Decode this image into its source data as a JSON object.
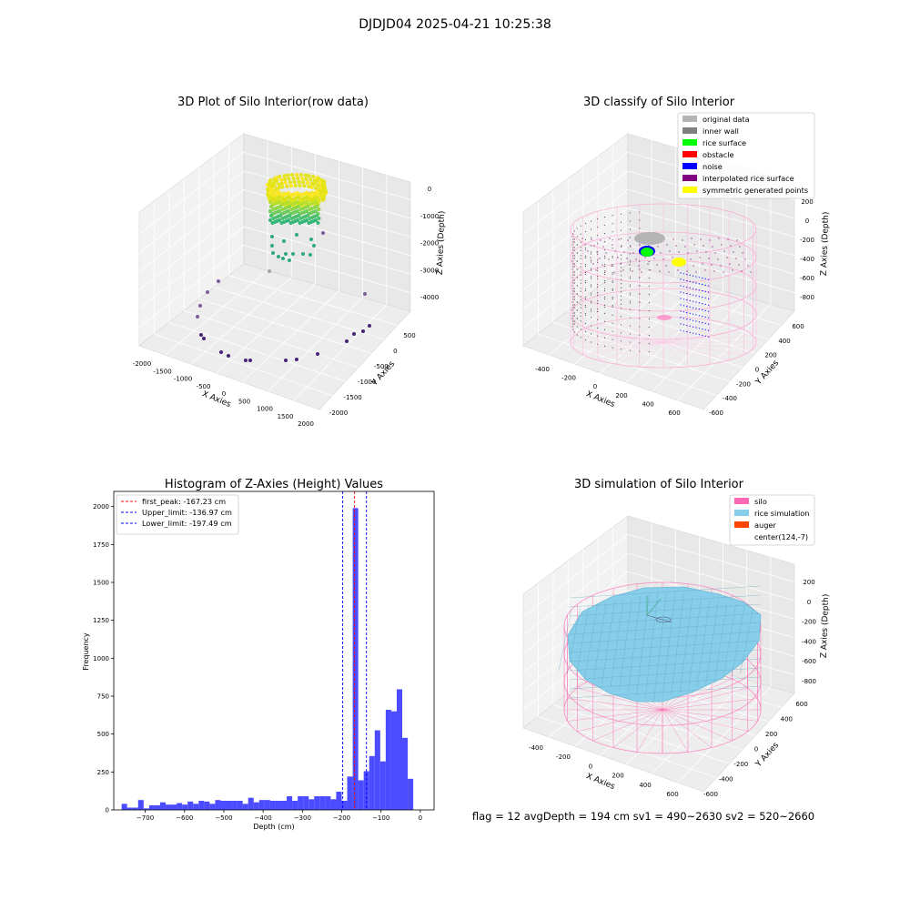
{
  "figure": {
    "suptitle": "DJDJD04 2025-04-21 10:25:38",
    "footer": "flag = 12  avgDepth = 194 cm  sv1 = 490~2630  sv2 = 520~2660"
  },
  "chart_data": [
    {
      "type": "scatter3d",
      "title": "3D Plot of Silo Interior(row data)",
      "xlabel": "X Axies",
      "ylabel": "Y Axies",
      "zlabel": "Z Axies (Depth)",
      "xticks": [
        "-2000",
        "-1500",
        "-1000",
        "-500",
        "0",
        "500",
        "1000",
        "1500",
        "2000"
      ],
      "yticks": [
        "-2000",
        "-1500",
        "-1000",
        "-500",
        "0",
        "500"
      ],
      "zticks": [
        "0",
        "-1000",
        "-2000",
        "-3000",
        "-4000"
      ],
      "xlim": [
        -2000,
        2000
      ],
      "ylim": [
        -2000,
        600
      ],
      "zlim": [
        -4500,
        0
      ],
      "colormap": "viridis"
    },
    {
      "type": "scatter3d",
      "title": "3D classify of Silo Interior",
      "xlabel": "X Axies",
      "ylabel": "Y Axies",
      "zlabel": "Z Axies (Depth)",
      "xticks": [
        "-400",
        "-200",
        "0",
        "200",
        "400",
        "600"
      ],
      "yticks": [
        "-600",
        "-400",
        "-200",
        "0",
        "200",
        "400",
        "600"
      ],
      "zticks": [
        "200",
        "0",
        "-200",
        "-400",
        "-600",
        "-800"
      ],
      "legend_position": "top-right",
      "legend": [
        {
          "label": "original data",
          "color": "#b4b4b4"
        },
        {
          "label": "inner wall",
          "color": "#808080"
        },
        {
          "label": "rice surface",
          "color": "#00ff00"
        },
        {
          "label": "obstacle",
          "color": "#ff0000"
        },
        {
          "label": "noise",
          "color": "#0000ff"
        },
        {
          "label": "interpolated rice surface",
          "color": "#800080"
        },
        {
          "label": "symmetric generated points",
          "color": "#ffff00"
        }
      ]
    },
    {
      "type": "bar",
      "title": "Histogram of Z-Axies (Height) Values",
      "xlabel": "Depth (cm)",
      "ylabel": "Frequency",
      "xlim": [
        -780,
        35
      ],
      "ylim": [
        0,
        2100
      ],
      "xticks": [
        -700,
        -600,
        -500,
        -400,
        -300,
        -200,
        -100,
        0
      ],
      "yticks": [
        0,
        250,
        500,
        750,
        1000,
        1250,
        1500,
        1750,
        2000
      ],
      "bar_color": "#4b4bff",
      "legend_position": "top-left",
      "bins": [
        [
          -760,
          -746,
          40
        ],
        [
          -746,
          -732,
          15
        ],
        [
          -732,
          -718,
          15
        ],
        [
          -718,
          -704,
          65
        ],
        [
          -704,
          -690,
          10
        ],
        [
          -690,
          -676,
          30
        ],
        [
          -676,
          -662,
          30
        ],
        [
          -662,
          -648,
          50
        ],
        [
          -648,
          -634,
          35
        ],
        [
          -634,
          -620,
          35
        ],
        [
          -620,
          -606,
          45
        ],
        [
          -606,
          -592,
          35
        ],
        [
          -592,
          -578,
          55
        ],
        [
          -578,
          -564,
          40
        ],
        [
          -564,
          -550,
          60
        ],
        [
          -550,
          -536,
          55
        ],
        [
          -536,
          -522,
          40
        ],
        [
          -522,
          -508,
          65
        ],
        [
          -508,
          -494,
          60
        ],
        [
          -494,
          -480,
          60
        ],
        [
          -480,
          -466,
          60
        ],
        [
          -466,
          -452,
          60
        ],
        [
          -452,
          -438,
          40
        ],
        [
          -438,
          -424,
          80
        ],
        [
          -424,
          -410,
          50
        ],
        [
          -410,
          -396,
          65
        ],
        [
          -396,
          -382,
          65
        ],
        [
          -382,
          -368,
          60
        ],
        [
          -368,
          -354,
          60
        ],
        [
          -354,
          -340,
          60
        ],
        [
          -340,
          -326,
          90
        ],
        [
          -326,
          -312,
          60
        ],
        [
          -312,
          -298,
          90
        ],
        [
          -298,
          -284,
          90
        ],
        [
          -284,
          -270,
          70
        ],
        [
          -270,
          -256,
          90
        ],
        [
          -256,
          -242,
          90
        ],
        [
          -242,
          -228,
          90
        ],
        [
          -228,
          -214,
          70
        ],
        [
          -214,
          -200,
          120
        ],
        [
          -200,
          -186,
          60
        ],
        [
          -186,
          -172,
          220
        ],
        [
          -172,
          -158,
          1990
        ],
        [
          -158,
          -144,
          195
        ],
        [
          -144,
          -130,
          255
        ],
        [
          -130,
          -116,
          355
        ],
        [
          -116,
          -102,
          525
        ],
        [
          -102,
          -88,
          320
        ],
        [
          -88,
          -74,
          660
        ],
        [
          -74,
          -60,
          650
        ],
        [
          -60,
          -46,
          795
        ],
        [
          -46,
          -32,
          475
        ],
        [
          -32,
          -18,
          205
        ]
      ],
      "vlines": [
        {
          "label": "first_peak: -167.23 cm",
          "value": -167.23,
          "color": "#ff0000"
        },
        {
          "label": "Upper_limit: -136.97 cm",
          "value": -136.97,
          "color": "#0000ff"
        },
        {
          "label": "Lower_limit: -197.49 cm",
          "value": -197.49,
          "color": "#0000ff"
        }
      ]
    },
    {
      "type": "surface3d",
      "title": "3D simulation of Silo Interior",
      "xlabel": "X Axies",
      "ylabel": "Y Axies",
      "zlabel": "Z Axies (Depth)",
      "xticks": [
        "-400",
        "-200",
        "0",
        "200",
        "400",
        "600"
      ],
      "yticks": [
        "-600",
        "-400",
        "-200",
        "0",
        "200",
        "400",
        "600"
      ],
      "zticks": [
        "200",
        "0",
        "-200",
        "-400",
        "-600",
        "-800"
      ],
      "legend_position": "top-right",
      "legend": [
        {
          "label": "silo",
          "color": "#ff69b4"
        },
        {
          "label": "rice simulation",
          "color": "#87ceeb"
        },
        {
          "label": "auger",
          "color": "#ff4500"
        },
        {
          "label": "center(124,-7)",
          "color": "none"
        }
      ]
    }
  ]
}
